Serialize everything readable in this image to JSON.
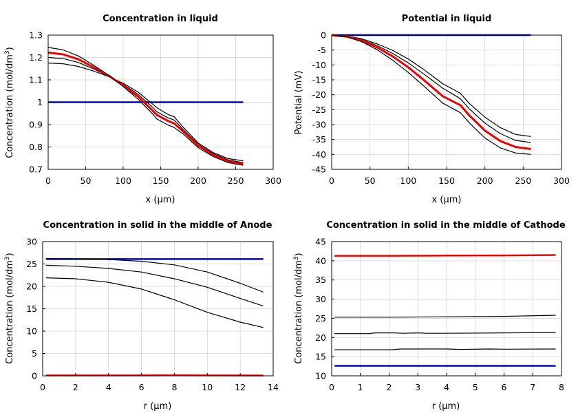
{
  "chart_data": [
    {
      "type": "line",
      "title": "Concentration in liquid",
      "xlabel": "x (µm)",
      "ylabel": "Concentration (mol/dm³)",
      "xlim": [
        0,
        300
      ],
      "ylim": [
        0.7,
        1.3
      ],
      "xticks": [
        0,
        50,
        100,
        150,
        200,
        250,
        300
      ],
      "yticks": [
        0.7,
        0.8,
        0.9,
        1,
        1.1,
        1.2,
        1.3
      ],
      "grid": true,
      "series": [
        {
          "color": "#0000cc",
          "width": 2.5,
          "x": [
            0,
            260
          ],
          "y": [
            1.0,
            1.0
          ]
        },
        {
          "color": "#000000",
          "width": 1.2,
          "x": [
            0,
            20,
            40,
            60,
            80,
            100,
            120,
            140,
            145,
            160,
            168,
            180,
            200,
            220,
            240,
            260
          ],
          "y": [
            1.175,
            1.172,
            1.16,
            1.14,
            1.115,
            1.085,
            1.045,
            0.99,
            0.975,
            0.945,
            0.935,
            0.888,
            0.818,
            0.775,
            0.748,
            0.738
          ]
        },
        {
          "color": "#000000",
          "width": 1.2,
          "x": [
            0,
            20,
            40,
            60,
            80,
            100,
            120,
            140,
            145,
            160,
            168,
            180,
            200,
            220,
            240,
            260
          ],
          "y": [
            1.2,
            1.195,
            1.178,
            1.15,
            1.117,
            1.08,
            1.035,
            0.975,
            0.957,
            0.93,
            0.92,
            0.878,
            0.812,
            0.77,
            0.742,
            0.73
          ]
        },
        {
          "color": "#ee0000",
          "width": 3,
          "x": [
            0,
            20,
            40,
            60,
            80,
            100,
            120,
            140,
            145,
            160,
            168,
            180,
            200,
            220,
            240,
            260
          ],
          "y": [
            1.222,
            1.214,
            1.192,
            1.158,
            1.12,
            1.075,
            1.025,
            0.96,
            0.943,
            0.916,
            0.905,
            0.87,
            0.806,
            0.764,
            0.736,
            0.724
          ]
        },
        {
          "color": "#000000",
          "width": 1.2,
          "x": [
            0,
            20,
            40,
            60,
            80,
            100,
            120,
            140,
            145,
            160,
            168,
            180,
            200,
            220,
            240,
            260
          ],
          "y": [
            1.245,
            1.234,
            1.207,
            1.167,
            1.122,
            1.07,
            1.013,
            0.945,
            0.925,
            0.898,
            0.887,
            0.858,
            0.797,
            0.757,
            0.73,
            0.718
          ]
        }
      ]
    },
    {
      "type": "line",
      "title": "Potential in liquid",
      "xlabel": "x (µm)",
      "ylabel": "Potential (mV)",
      "xlim": [
        0,
        300
      ],
      "ylim": [
        -45,
        0
      ],
      "xticks": [
        0,
        50,
        100,
        150,
        200,
        250,
        300
      ],
      "yticks": [
        0,
        -5,
        -10,
        -15,
        -20,
        -25,
        -30,
        -35,
        -40,
        -45
      ],
      "grid": true,
      "series": [
        {
          "color": "#0000cc",
          "width": 2.5,
          "x": [
            0,
            260
          ],
          "y": [
            0,
            0
          ]
        },
        {
          "color": "#000000",
          "width": 1.2,
          "x": [
            0,
            20,
            40,
            60,
            80,
            100,
            120,
            145,
            168,
            180,
            200,
            220,
            240,
            260
          ],
          "y": [
            0,
            -0.3,
            -1.3,
            -3.0,
            -5.2,
            -8.0,
            -11.5,
            -16.3,
            -19.5,
            -23.0,
            -27.5,
            -31.0,
            -33.3,
            -34.0
          ]
        },
        {
          "color": "#000000",
          "width": 1.2,
          "x": [
            0,
            20,
            40,
            60,
            80,
            100,
            120,
            145,
            168,
            180,
            200,
            220,
            240,
            260
          ],
          "y": [
            0,
            -0.4,
            -1.6,
            -3.6,
            -6.2,
            -9.3,
            -13.0,
            -17.8,
            -21.3,
            -24.8,
            -29.5,
            -33.0,
            -35.3,
            -36.0
          ]
        },
        {
          "color": "#ee0000",
          "width": 3,
          "x": [
            0,
            20,
            40,
            60,
            80,
            100,
            120,
            145,
            168,
            180,
            200,
            220,
            240,
            260
          ],
          "y": [
            0,
            -0.5,
            -1.9,
            -4.2,
            -7.2,
            -10.8,
            -15.0,
            -20.5,
            -23.5,
            -27.0,
            -32.0,
            -35.5,
            -37.5,
            -38.2
          ]
        },
        {
          "color": "#000000",
          "width": 1.2,
          "x": [
            0,
            20,
            40,
            60,
            80,
            100,
            120,
            145,
            168,
            180,
            200,
            220,
            240,
            260
          ],
          "y": [
            0,
            -0.6,
            -2.3,
            -5.0,
            -8.5,
            -12.5,
            -17.0,
            -22.8,
            -26.0,
            -29.5,
            -34.5,
            -37.8,
            -39.5,
            -40.0
          ]
        }
      ]
    },
    {
      "type": "line",
      "title": "Concentration in solid in the middle of Anode",
      "xlabel": "r (µm)",
      "ylabel": "Concentration (mol/dm³)",
      "xlim": [
        0,
        14
      ],
      "ylim": [
        0,
        30
      ],
      "xticks": [
        0,
        2,
        4,
        6,
        8,
        10,
        12,
        14
      ],
      "yticks": [
        0,
        5,
        10,
        15,
        20,
        25,
        30
      ],
      "grid": true,
      "series": [
        {
          "color": "#0000cc",
          "width": 2.5,
          "x": [
            0.2,
            13.4
          ],
          "y": [
            26.1,
            26.1
          ]
        },
        {
          "color": "#000000",
          "width": 1.2,
          "x": [
            0.2,
            2,
            4,
            6,
            8,
            10,
            12,
            13.4
          ],
          "y": [
            26.2,
            26.15,
            26.0,
            25.6,
            24.8,
            23.2,
            20.7,
            18.7
          ]
        },
        {
          "color": "#000000",
          "width": 1.2,
          "x": [
            0.2,
            2,
            4,
            6,
            8,
            10,
            12,
            13.4
          ],
          "y": [
            24.7,
            24.5,
            24.0,
            23.2,
            21.7,
            19.8,
            17.3,
            15.6
          ]
        },
        {
          "color": "#000000",
          "width": 1.2,
          "x": [
            0.2,
            2,
            4,
            6,
            8,
            10,
            12,
            13.4
          ],
          "y": [
            21.9,
            21.7,
            20.9,
            19.4,
            17.0,
            14.2,
            12.0,
            10.8
          ]
        },
        {
          "color": "#ee0000",
          "width": 2.5,
          "x": [
            0.2,
            4,
            8,
            13.4
          ],
          "y": [
            0.1,
            0.1,
            0.12,
            0.08
          ]
        }
      ]
    },
    {
      "type": "line",
      "title": "Concentration in solid in the middle of Cathode",
      "xlabel": "r (µm)",
      "ylabel": "Concentration (mol/dm³)",
      "xlim": [
        0,
        8
      ],
      "ylim": [
        10,
        45
      ],
      "xticks": [
        0,
        1,
        2,
        3,
        4,
        5,
        6,
        7,
        8
      ],
      "yticks": [
        10,
        15,
        20,
        25,
        30,
        35,
        40,
        45
      ],
      "grid": true,
      "series": [
        {
          "color": "#ee0000",
          "width": 2.5,
          "x": [
            0.1,
            2,
            4,
            6,
            7.8
          ],
          "y": [
            41.3,
            41.3,
            41.35,
            41.4,
            41.5
          ]
        },
        {
          "color": "#000000",
          "width": 1.2,
          "x": [
            0.1,
            2,
            4,
            6,
            7.8
          ],
          "y": [
            25.3,
            25.3,
            25.4,
            25.5,
            25.8
          ]
        },
        {
          "color": "#000000",
          "width": 1.2,
          "x": [
            0.1,
            1.3,
            1.5,
            2.2,
            2.5,
            3.0,
            3.3,
            4,
            6,
            7.8
          ],
          "y": [
            21.0,
            21.0,
            21.2,
            21.2,
            21.1,
            21.2,
            21.1,
            21.1,
            21.2,
            21.3
          ]
        },
        {
          "color": "#000000",
          "width": 1.2,
          "x": [
            0.1,
            2.1,
            2.4,
            4,
            4.5,
            5.5,
            6,
            7.8
          ],
          "y": [
            16.8,
            16.8,
            17.0,
            17.0,
            16.9,
            17.0,
            16.95,
            17.0
          ]
        },
        {
          "color": "#0000cc",
          "width": 2.5,
          "x": [
            0.1,
            7.8
          ],
          "y": [
            12.6,
            12.6
          ]
        }
      ]
    }
  ]
}
